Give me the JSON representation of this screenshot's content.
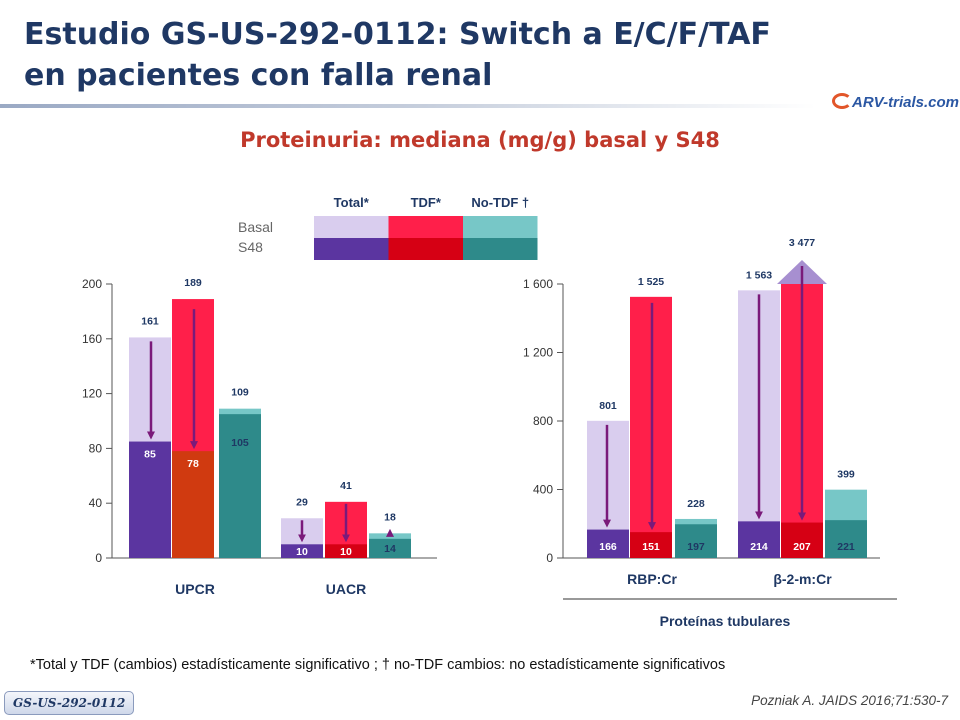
{
  "slide": {
    "title_line1": "Estudio GS-US-292-0112: Switch a E/C/F/TAF",
    "title_line2": "en pacientes con falla renal",
    "logo_text": "ARV-trials.com",
    "subtitle": "Proteinuria: mediana (mg/g) basal y S48",
    "footnote": "*Total y TDF (cambios) estadísticamente significativo ; † no-TDF cambios: no estadísticamente significativos",
    "badge": "GS-US-292-0112",
    "citation": "Pozniak A. JAIDS 2016;71:530-7"
  },
  "legend": {
    "columns": [
      "Total*",
      "TDF*",
      "No-TDF †"
    ],
    "rows": [
      "Basal",
      "S48"
    ],
    "colors_basal": [
      "#d9cdee",
      "#ff1f4a",
      "#77c7c7"
    ],
    "colors_s48": [
      "#5b35a0",
      "#d60014",
      "#2e8a8a"
    ]
  },
  "colors": {
    "arrow": "#7a1a7a",
    "axis": "#555555",
    "label": "#1f3864"
  },
  "chart_data": [
    {
      "type": "bar",
      "ylim": [
        0,
        200
      ],
      "yticks": [
        "0",
        "40",
        "80",
        "120",
        "160",
        "200"
      ],
      "categories": [
        "UPCR",
        "UACR"
      ],
      "series": [
        {
          "name": "Total*",
          "basal": [
            161,
            29
          ],
          "s48": [
            85,
            10
          ]
        },
        {
          "name": "TDF*",
          "basal": [
            189,
            41
          ],
          "s48": [
            78,
            10
          ]
        },
        {
          "name": "No-TDF †",
          "basal": [
            109,
            18
          ],
          "s48": [
            105,
            14
          ]
        }
      ],
      "basal_labels": [
        "161",
        "189",
        "109",
        "29",
        "41",
        "18"
      ],
      "s48_labels": [
        "85",
        "78",
        "105",
        "10",
        "10",
        "14"
      ]
    },
    {
      "type": "bar",
      "ylim": [
        0,
        1600
      ],
      "yticks": [
        "0",
        "400",
        "800",
        "1 200",
        "1 600"
      ],
      "categories": [
        "RBP:Cr",
        "β-2-m:Cr"
      ],
      "group_label": "Proteínas tubulares",
      "series": [
        {
          "name": "Total*",
          "basal": [
            801,
            1563
          ],
          "s48": [
            166,
            214
          ]
        },
        {
          "name": "TDF*",
          "basal": [
            1525,
            3477
          ],
          "s48": [
            151,
            207
          ]
        },
        {
          "name": "No-TDF †",
          "basal": [
            228,
            399
          ],
          "s48": [
            197,
            221
          ]
        }
      ],
      "basal_labels": [
        "801",
        "1 525",
        "228",
        "1 563",
        "3 477",
        "399"
      ],
      "s48_labels": [
        "166",
        "151",
        "197",
        "214",
        "207",
        "221"
      ]
    }
  ]
}
